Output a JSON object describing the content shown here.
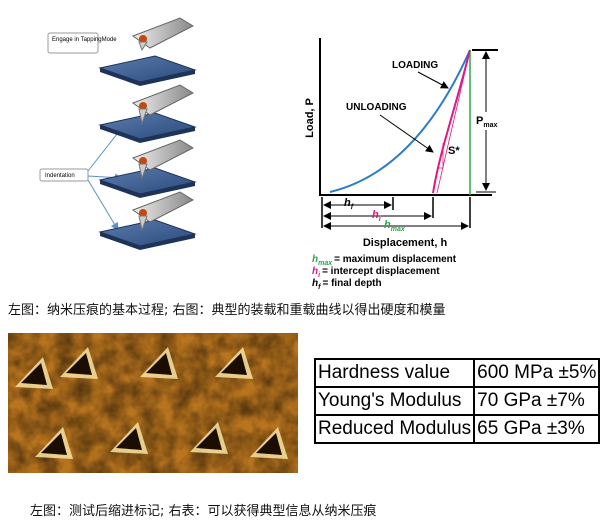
{
  "process_diagram": {
    "labels": [
      "Engage in TappingMode",
      "Indentation"
    ]
  },
  "curve_diagram": {
    "y_axis_label": "Load, P",
    "x_axis_label": "Displacement, h",
    "loading_label": "LOADING",
    "unloading_label": "UNLOADING",
    "pmax": {
      "symbol": "P",
      "subscript": "max"
    },
    "stiffness_label": "S*",
    "hf": {
      "symbol": "h",
      "subscript": "f"
    },
    "hi": {
      "symbol": "h",
      "subscript": "i"
    },
    "hmax": {
      "symbol": "h",
      "subscript": "max"
    },
    "legend": [
      {
        "symbol": "h",
        "subscript": "max",
        "text": "= maximum displacement"
      },
      {
        "symbol": "h",
        "subscript": "i",
        "text": "= intercept displacement"
      },
      {
        "symbol": "h",
        "subscript": "f",
        "text": "= final depth"
      }
    ]
  },
  "caption_top": "左图：纳米压痕的基本过程; 右图：典型的装载和重载曲线以得出硬度和模量",
  "table": {
    "rows": [
      [
        "Hardness value",
        "600 MPa ±5%"
      ],
      [
        "Young's Modulus",
        "70 GPa ±7%"
      ],
      [
        "Reduced Modulus",
        "65 GPa ±3%"
      ]
    ]
  },
  "caption_bottom": "左图：测试后缩进标记; 右表：可以获得典型信息从纳米压痕"
}
